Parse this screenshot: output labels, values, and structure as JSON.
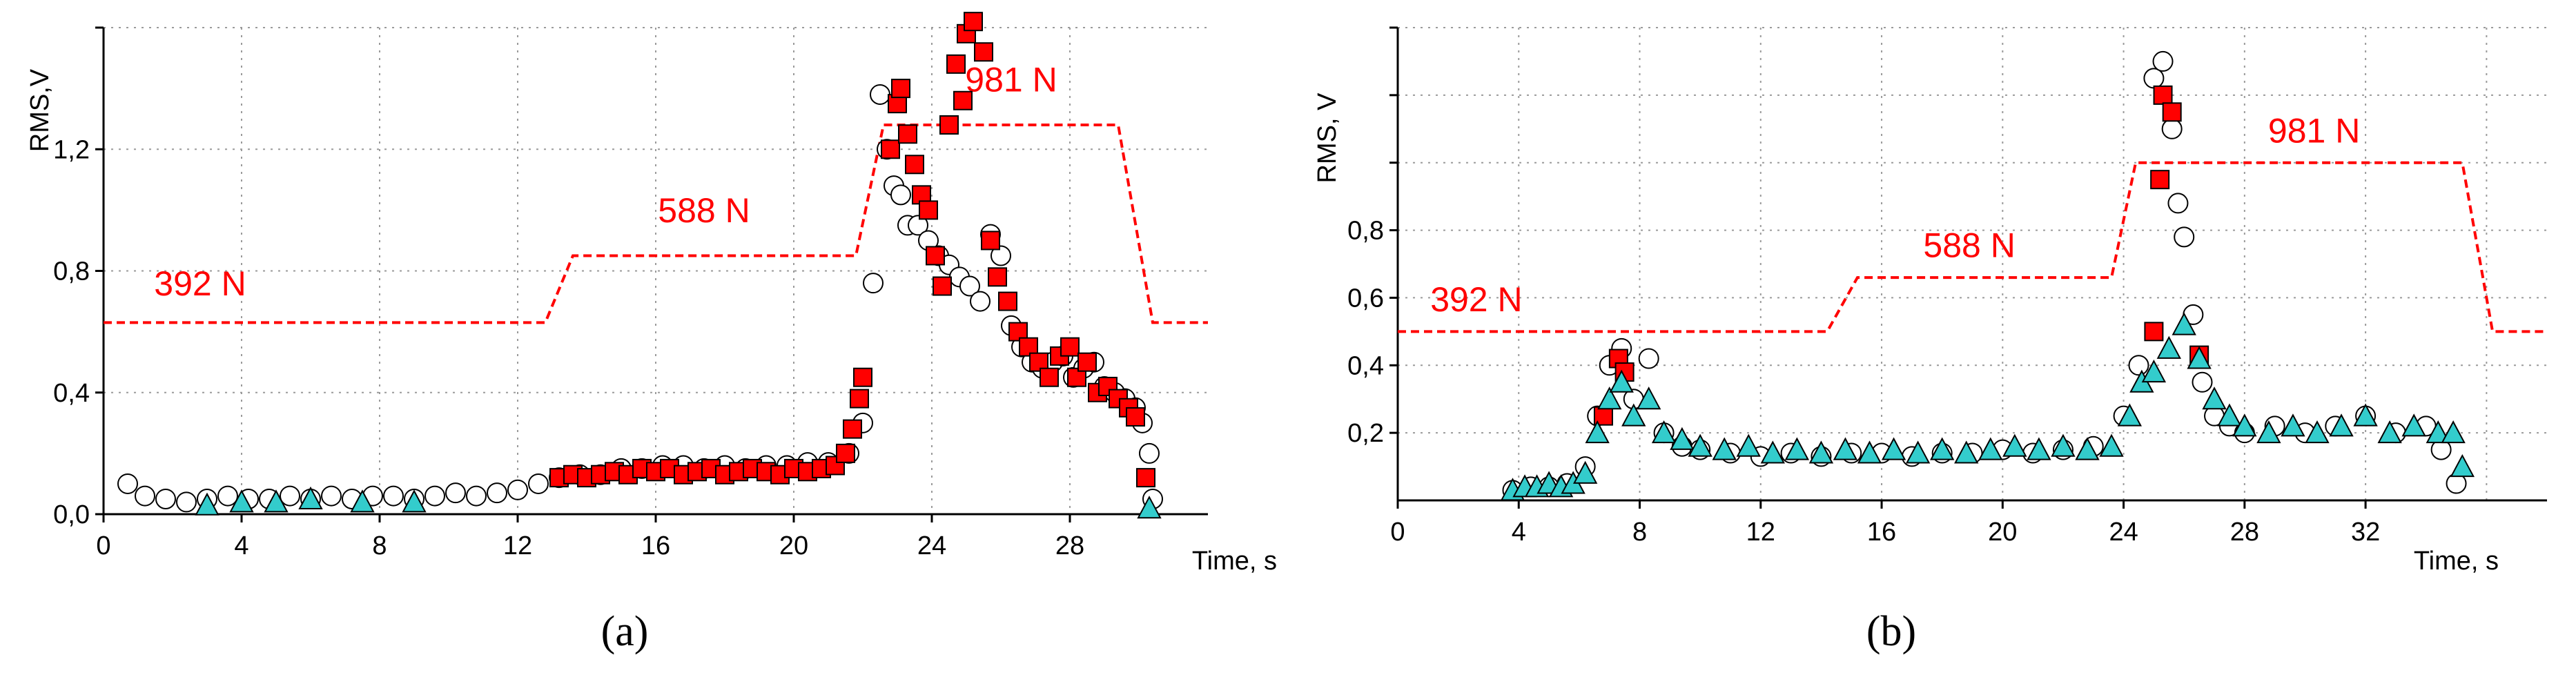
{
  "chart_data": [
    {
      "type": "scatter",
      "caption": "(a)",
      "xlabel": "Time, s",
      "ylabel": "RMS,V",
      "xlim": [
        0,
        32
      ],
      "ylim": [
        0,
        1.6
      ],
      "xticks": [
        "0",
        "4",
        "8",
        "12",
        "16",
        "20",
        "24",
        "28"
      ],
      "yticks": [
        "0,0",
        "0,4",
        "0,8",
        "1,2"
      ],
      "grid": true,
      "force_line": {
        "color": "#ff0000",
        "style": "dashed",
        "points": [
          [
            0,
            0.63
          ],
          [
            12.8,
            0.63
          ],
          [
            13.6,
            0.85
          ],
          [
            21.8,
            0.85
          ],
          [
            22.6,
            1.28
          ],
          [
            29.4,
            1.28
          ],
          [
            30.4,
            0.63
          ],
          [
            32,
            0.63
          ]
        ],
        "labels": [
          {
            "text": "392 N",
            "x": 2.8,
            "y": 0.72
          },
          {
            "text": "588 N",
            "x": 17.4,
            "y": 0.96
          },
          {
            "text": "981 N",
            "x": 26.3,
            "y": 1.39
          }
        ]
      },
      "series": [
        {
          "marker": "circle",
          "color": "#ffffff",
          "edge": "#000000",
          "points": [
            [
              0.7,
              0.1
            ],
            [
              1.2,
              0.06
            ],
            [
              1.8,
              0.05
            ],
            [
              2.4,
              0.04
            ],
            [
              3.0,
              0.05
            ],
            [
              3.6,
              0.06
            ],
            [
              4.2,
              0.05
            ],
            [
              4.8,
              0.05
            ],
            [
              5.4,
              0.06
            ],
            [
              6.0,
              0.05
            ],
            [
              6.6,
              0.06
            ],
            [
              7.2,
              0.05
            ],
            [
              7.8,
              0.06
            ],
            [
              8.4,
              0.06
            ],
            [
              9.0,
              0.05
            ],
            [
              9.6,
              0.06
            ],
            [
              10.2,
              0.07
            ],
            [
              10.8,
              0.06
            ],
            [
              11.4,
              0.07
            ],
            [
              12.0,
              0.08
            ],
            [
              12.6,
              0.1
            ],
            [
              13.2,
              0.12
            ],
            [
              13.8,
              0.13
            ],
            [
              14.4,
              0.13
            ],
            [
              15.0,
              0.15
            ],
            [
              15.6,
              0.15
            ],
            [
              16.2,
              0.16
            ],
            [
              16.8,
              0.16
            ],
            [
              17.4,
              0.15
            ],
            [
              18.0,
              0.16
            ],
            [
              18.6,
              0.15
            ],
            [
              19.2,
              0.16
            ],
            [
              19.8,
              0.16
            ],
            [
              20.4,
              0.17
            ],
            [
              21.0,
              0.17
            ],
            [
              21.6,
              0.2
            ],
            [
              22.0,
              0.3
            ],
            [
              22.3,
              0.76
            ],
            [
              22.5,
              1.38
            ],
            [
              22.7,
              1.2
            ],
            [
              22.9,
              1.08
            ],
            [
              23.1,
              1.05
            ],
            [
              23.3,
              0.95
            ],
            [
              23.6,
              0.95
            ],
            [
              23.9,
              0.9
            ],
            [
              24.2,
              0.85
            ],
            [
              24.5,
              0.82
            ],
            [
              24.8,
              0.78
            ],
            [
              25.1,
              0.75
            ],
            [
              25.4,
              0.7
            ],
            [
              25.7,
              0.92
            ],
            [
              26.0,
              0.85
            ],
            [
              26.3,
              0.62
            ],
            [
              26.6,
              0.55
            ],
            [
              26.9,
              0.5
            ],
            [
              27.2,
              0.48
            ],
            [
              27.5,
              0.5
            ],
            [
              27.8,
              0.52
            ],
            [
              28.1,
              0.45
            ],
            [
              28.4,
              0.48
            ],
            [
              28.7,
              0.5
            ],
            [
              29.0,
              0.42
            ],
            [
              29.3,
              0.4
            ],
            [
              29.6,
              0.38
            ],
            [
              29.9,
              0.35
            ],
            [
              30.1,
              0.3
            ],
            [
              30.3,
              0.2
            ],
            [
              30.4,
              0.05
            ]
          ]
        },
        {
          "marker": "square",
          "color": "#ff0000",
          "edge": "#000000",
          "points": [
            [
              13.2,
              0.12
            ],
            [
              13.6,
              0.13
            ],
            [
              14.0,
              0.12
            ],
            [
              14.4,
              0.13
            ],
            [
              14.8,
              0.14
            ],
            [
              15.2,
              0.13
            ],
            [
              15.6,
              0.15
            ],
            [
              16.0,
              0.14
            ],
            [
              16.4,
              0.15
            ],
            [
              16.8,
              0.13
            ],
            [
              17.2,
              0.14
            ],
            [
              17.6,
              0.15
            ],
            [
              18.0,
              0.13
            ],
            [
              18.4,
              0.14
            ],
            [
              18.8,
              0.15
            ],
            [
              19.2,
              0.14
            ],
            [
              19.6,
              0.13
            ],
            [
              20.0,
              0.15
            ],
            [
              20.4,
              0.14
            ],
            [
              20.8,
              0.15
            ],
            [
              21.2,
              0.16
            ],
            [
              21.5,
              0.2
            ],
            [
              21.7,
              0.28
            ],
            [
              21.9,
              0.38
            ],
            [
              22.0,
              0.45
            ],
            [
              22.8,
              1.2
            ],
            [
              23.0,
              1.35
            ],
            [
              23.1,
              1.4
            ],
            [
              23.3,
              1.25
            ],
            [
              23.5,
              1.15
            ],
            [
              23.7,
              1.05
            ],
            [
              23.9,
              1.0
            ],
            [
              24.1,
              0.85
            ],
            [
              24.3,
              0.75
            ],
            [
              24.5,
              1.28
            ],
            [
              24.7,
              1.48
            ],
            [
              24.9,
              1.36
            ],
            [
              25.0,
              1.58
            ],
            [
              25.2,
              1.62
            ],
            [
              25.5,
              1.52
            ],
            [
              25.7,
              0.9
            ],
            [
              25.9,
              0.78
            ],
            [
              26.2,
              0.7
            ],
            [
              26.5,
              0.6
            ],
            [
              26.8,
              0.55
            ],
            [
              27.1,
              0.5
            ],
            [
              27.4,
              0.45
            ],
            [
              27.7,
              0.52
            ],
            [
              28.0,
              0.55
            ],
            [
              28.2,
              0.45
            ],
            [
              28.5,
              0.5
            ],
            [
              28.8,
              0.4
            ],
            [
              29.1,
              0.42
            ],
            [
              29.4,
              0.38
            ],
            [
              29.7,
              0.35
            ],
            [
              29.9,
              0.32
            ],
            [
              30.2,
              0.12
            ]
          ]
        },
        {
          "marker": "triangle",
          "color": "#33cccc",
          "edge": "#000000",
          "points": [
            [
              3.0,
              0.03
            ],
            [
              4.0,
              0.04
            ],
            [
              5.0,
              0.04
            ],
            [
              6.0,
              0.05
            ],
            [
              7.5,
              0.04
            ],
            [
              9.0,
              0.04
            ],
            [
              30.3,
              0.02
            ]
          ]
        }
      ]
    },
    {
      "type": "scatter",
      "caption": "(b)",
      "xlabel": "Time, s",
      "ylabel": "RMS, V",
      "xlim": [
        0,
        38
      ],
      "ylim": [
        0,
        1.4
      ],
      "xticks": [
        "0",
        "4",
        "8",
        "12",
        "16",
        "20",
        "24",
        "28",
        "32"
      ],
      "yticks": [
        "0,2",
        "0,4",
        "0,6",
        "0,8"
      ],
      "grid": true,
      "force_line": {
        "color": "#ff0000",
        "style": "dashed",
        "points": [
          [
            0,
            0.5
          ],
          [
            14.2,
            0.5
          ],
          [
            15.2,
            0.66
          ],
          [
            23.6,
            0.66
          ],
          [
            24.4,
            1.0
          ],
          [
            35.2,
            1.0
          ],
          [
            36.2,
            0.5
          ],
          [
            38,
            0.5
          ]
        ],
        "labels": [
          {
            "text": "392 N",
            "x": 2.6,
            "y": 0.56
          },
          {
            "text": "588 N",
            "x": 18.9,
            "y": 0.72
          },
          {
            "text": "981 N",
            "x": 30.3,
            "y": 1.06
          }
        ]
      },
      "series": [
        {
          "marker": "circle",
          "color": "#ffffff",
          "edge": "#000000",
          "points": [
            [
              3.8,
              0.03
            ],
            [
              4.4,
              0.04
            ],
            [
              5.0,
              0.04
            ],
            [
              5.6,
              0.05
            ],
            [
              6.2,
              0.1
            ],
            [
              6.6,
              0.25
            ],
            [
              7.0,
              0.4
            ],
            [
              7.4,
              0.45
            ],
            [
              7.8,
              0.3
            ],
            [
              8.3,
              0.42
            ],
            [
              8.8,
              0.2
            ],
            [
              9.4,
              0.16
            ],
            [
              10.0,
              0.15
            ],
            [
              11.0,
              0.14
            ],
            [
              12.0,
              0.13
            ],
            [
              13.0,
              0.14
            ],
            [
              14.0,
              0.13
            ],
            [
              15.0,
              0.14
            ],
            [
              16.0,
              0.14
            ],
            [
              17.0,
              0.13
            ],
            [
              18.0,
              0.14
            ],
            [
              19.0,
              0.14
            ],
            [
              20.0,
              0.15
            ],
            [
              21.0,
              0.14
            ],
            [
              22.0,
              0.15
            ],
            [
              23.0,
              0.16
            ],
            [
              24.0,
              0.25
            ],
            [
              24.5,
              0.4
            ],
            [
              25.0,
              1.25
            ],
            [
              25.3,
              1.3
            ],
            [
              25.6,
              1.1
            ],
            [
              25.8,
              0.88
            ],
            [
              26.0,
              0.78
            ],
            [
              26.3,
              0.55
            ],
            [
              26.6,
              0.35
            ],
            [
              27.0,
              0.25
            ],
            [
              27.5,
              0.22
            ],
            [
              28.0,
              0.2
            ],
            [
              29.0,
              0.22
            ],
            [
              30.0,
              0.2
            ],
            [
              31.0,
              0.22
            ],
            [
              32.0,
              0.25
            ],
            [
              33.0,
              0.2
            ],
            [
              34.0,
              0.22
            ],
            [
              34.5,
              0.15
            ],
            [
              35.0,
              0.05
            ]
          ]
        },
        {
          "marker": "square",
          "color": "#ff0000",
          "edge": "#000000",
          "points": [
            [
              6.8,
              0.25
            ],
            [
              7.3,
              0.42
            ],
            [
              7.5,
              0.38
            ],
            [
              25.0,
              0.5
            ],
            [
              25.2,
              0.95
            ],
            [
              25.3,
              1.2
            ],
            [
              25.6,
              1.15
            ],
            [
              26.5,
              0.43
            ]
          ]
        },
        {
          "marker": "triangle",
          "color": "#33cccc",
          "edge": "#000000",
          "points": [
            [
              3.8,
              0.03
            ],
            [
              4.2,
              0.04
            ],
            [
              4.6,
              0.04
            ],
            [
              5.0,
              0.05
            ],
            [
              5.4,
              0.04
            ],
            [
              5.8,
              0.05
            ],
            [
              6.2,
              0.08
            ],
            [
              6.6,
              0.2
            ],
            [
              7.0,
              0.3
            ],
            [
              7.4,
              0.35
            ],
            [
              7.8,
              0.25
            ],
            [
              8.3,
              0.3
            ],
            [
              8.8,
              0.2
            ],
            [
              9.4,
              0.18
            ],
            [
              10.0,
              0.16
            ],
            [
              10.8,
              0.15
            ],
            [
              11.6,
              0.16
            ],
            [
              12.4,
              0.14
            ],
            [
              13.2,
              0.15
            ],
            [
              14.0,
              0.14
            ],
            [
              14.8,
              0.15
            ],
            [
              15.6,
              0.14
            ],
            [
              16.4,
              0.15
            ],
            [
              17.2,
              0.14
            ],
            [
              18.0,
              0.15
            ],
            [
              18.8,
              0.14
            ],
            [
              19.6,
              0.15
            ],
            [
              20.4,
              0.16
            ],
            [
              21.2,
              0.15
            ],
            [
              22.0,
              0.16
            ],
            [
              22.8,
              0.15
            ],
            [
              23.6,
              0.16
            ],
            [
              24.2,
              0.25
            ],
            [
              24.6,
              0.35
            ],
            [
              25.0,
              0.38
            ],
            [
              25.5,
              0.45
            ],
            [
              26.0,
              0.52
            ],
            [
              26.5,
              0.42
            ],
            [
              27.0,
              0.3
            ],
            [
              27.5,
              0.25
            ],
            [
              28.0,
              0.22
            ],
            [
              28.8,
              0.2
            ],
            [
              29.6,
              0.22
            ],
            [
              30.4,
              0.2
            ],
            [
              31.2,
              0.22
            ],
            [
              32.0,
              0.25
            ],
            [
              32.8,
              0.2
            ],
            [
              33.6,
              0.22
            ],
            [
              34.4,
              0.2
            ],
            [
              34.9,
              0.2
            ],
            [
              35.2,
              0.1
            ]
          ]
        }
      ]
    }
  ]
}
